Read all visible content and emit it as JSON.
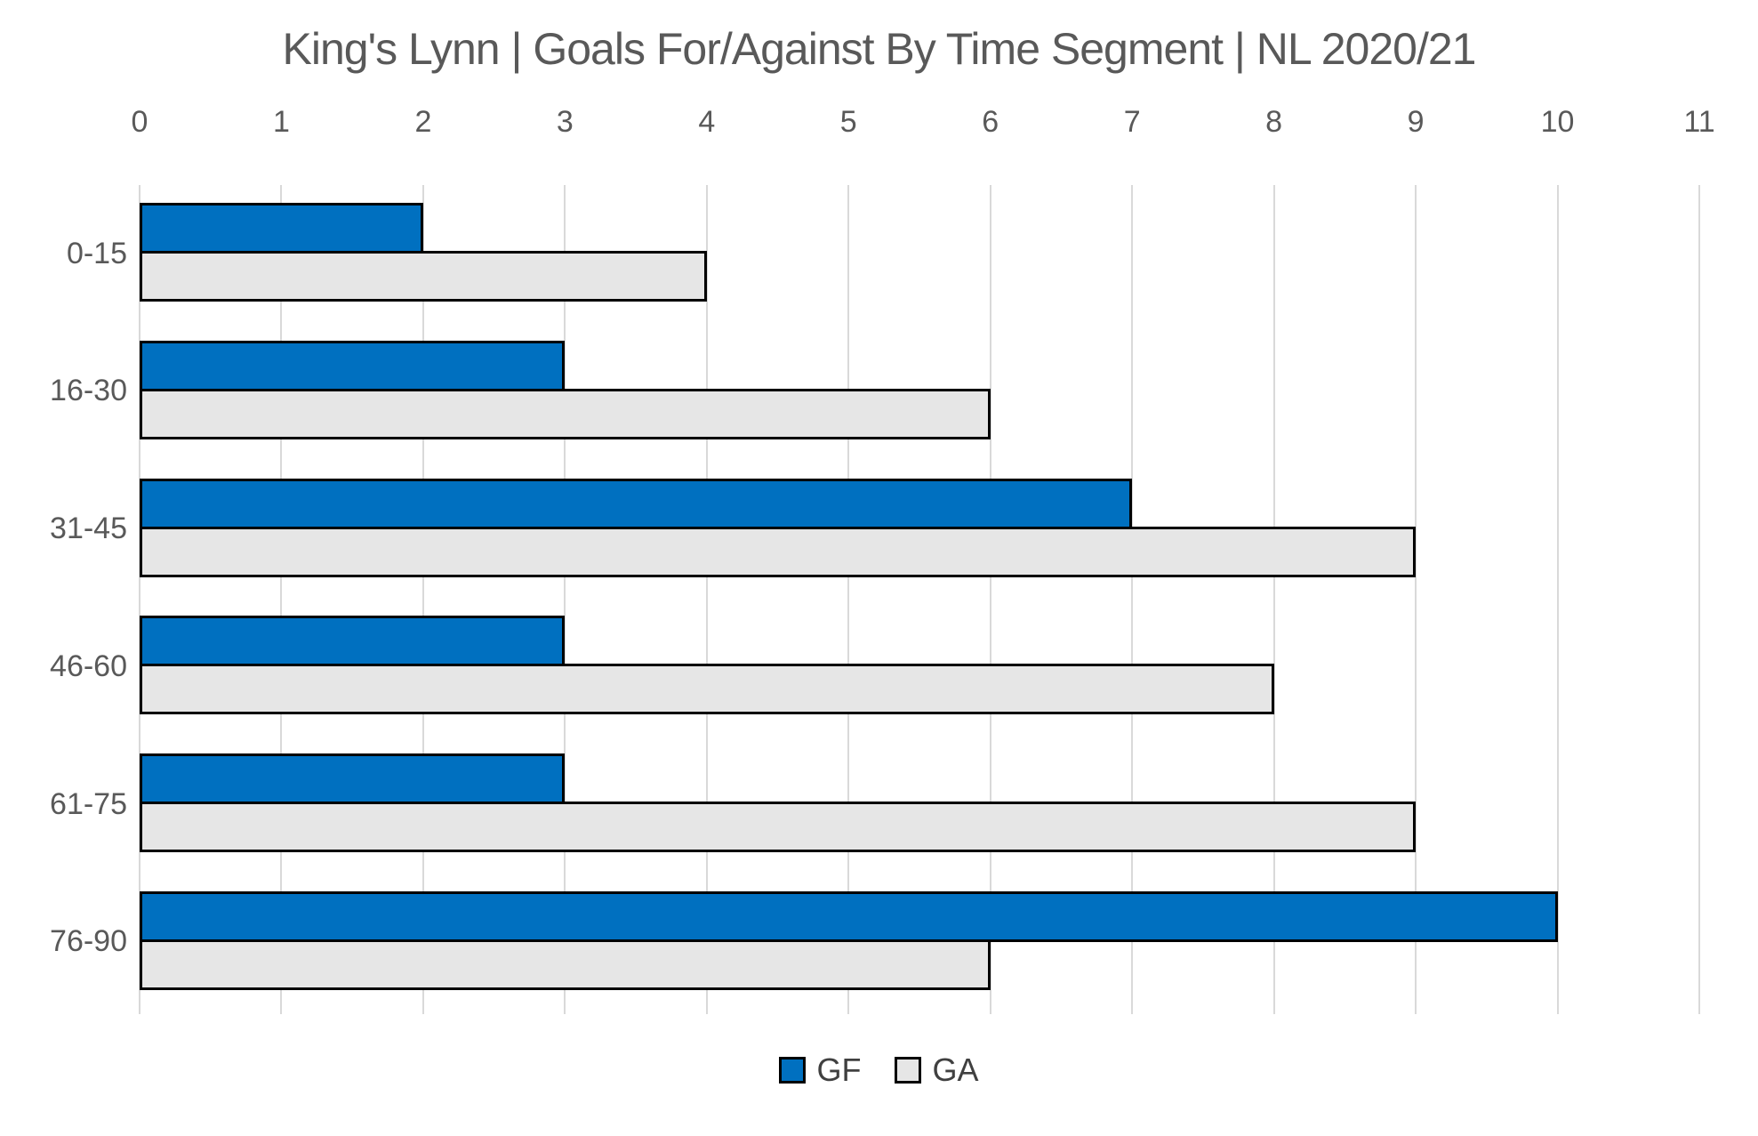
{
  "title": "King's Lynn | Goals For/Against By Time Segment | NL 2020/21",
  "colors": {
    "background": "#ffffff",
    "text": "#595959",
    "legend_text": "#404040",
    "gridline": "#D9D9D9",
    "bar_border": "#000000",
    "gf": "#0070C0",
    "ga": "#E6E6E6"
  },
  "x_axis": {
    "ticks": [
      "0",
      "1",
      "2",
      "3",
      "4",
      "5",
      "6",
      "7",
      "8",
      "9",
      "10",
      "11"
    ]
  },
  "legend": {
    "items": [
      "GF",
      "GA"
    ]
  },
  "chart_data": {
    "type": "bar",
    "orientation": "horizontal",
    "title": "King's Lynn | Goals For/Against By Time Segment | NL 2020/21",
    "categories": [
      "0-15",
      "16-30",
      "31-45",
      "46-60",
      "61-75",
      "76-90"
    ],
    "series": [
      {
        "name": "GF",
        "color": "#0070C0",
        "values": [
          2,
          3,
          7,
          3,
          3,
          10
        ]
      },
      {
        "name": "GA",
        "color": "#E6E6E6",
        "values": [
          4,
          6,
          9,
          8,
          9,
          6
        ]
      }
    ],
    "xlabel": "",
    "ylabel": "",
    "xlim": [
      0,
      11
    ],
    "xtick_step": 1,
    "grid": true,
    "gridlines": "vertical",
    "legend_position": "bottom"
  }
}
